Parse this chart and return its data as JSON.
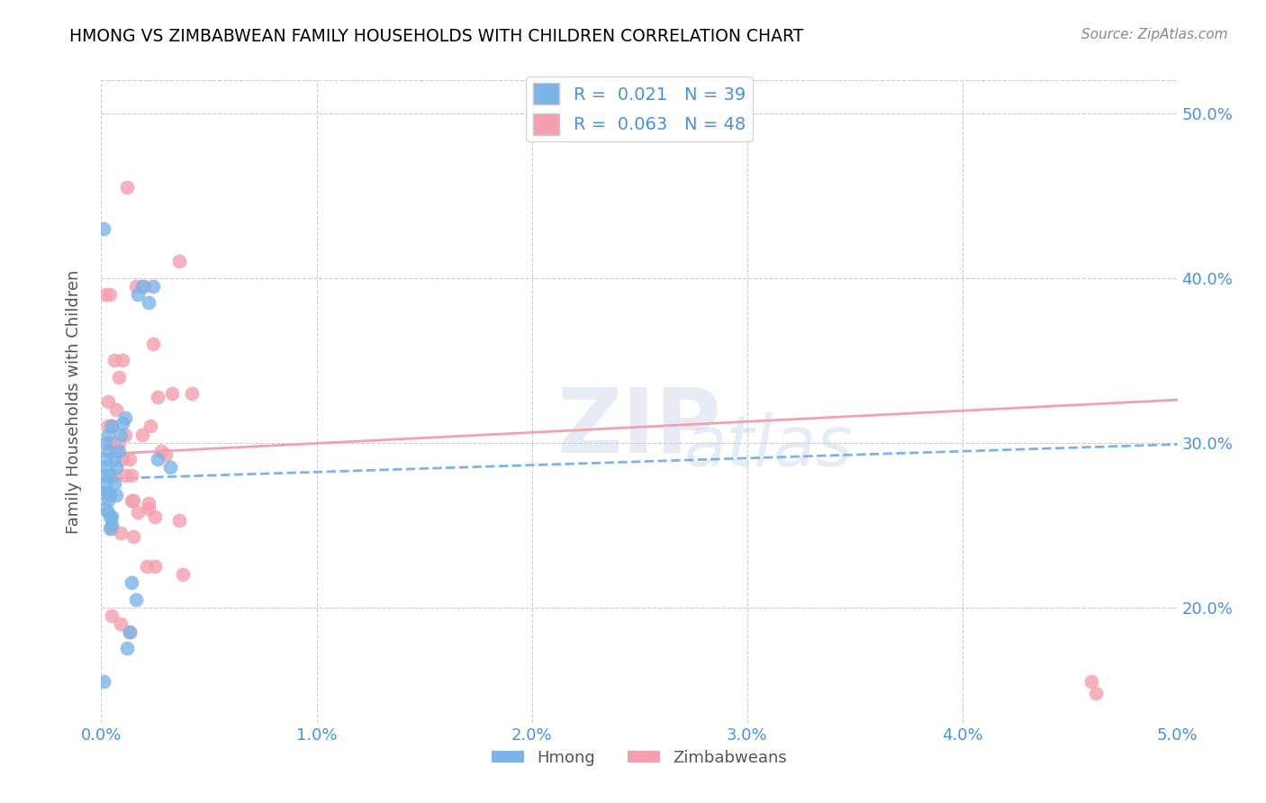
{
  "title": "HMONG VS ZIMBABWEAN FAMILY HOUSEHOLDS WITH CHILDREN CORRELATION CHART",
  "source": "Source: ZipAtlas.com",
  "ylabel": "Family Households with Children",
  "xlim": [
    0.0,
    0.05
  ],
  "ylim": [
    0.13,
    0.52
  ],
  "xtick_vals": [
    0.0,
    0.01,
    0.02,
    0.03,
    0.04,
    0.05
  ],
  "xtick_labels": [
    "0.0%",
    "1.0%",
    "2.0%",
    "3.0%",
    "4.0%",
    "5.0%"
  ],
  "ytick_vals": [
    0.2,
    0.3,
    0.4,
    0.5
  ],
  "ytick_labels": [
    "20.0%",
    "30.0%",
    "40.0%",
    "50.0%"
  ],
  "hmong_color": "#7cb4e8",
  "zimbabwean_color": "#f4a0b0",
  "hmong_R": 0.021,
  "hmong_N": 39,
  "zimbabwean_R": 0.063,
  "zimbabwean_N": 48,
  "legend_label_hmong": "Hmong",
  "legend_label_zimbabwean": "Zimbabweans",
  "hmong_x": [
    0.0001,
    0.0001,
    0.0001,
    0.0002,
    0.0002,
    0.0002,
    0.0002,
    0.0002,
    0.0003,
    0.0003,
    0.0003,
    0.0003,
    0.0003,
    0.0004,
    0.0004,
    0.0004,
    0.0004,
    0.0005,
    0.0005,
    0.0005,
    0.0006,
    0.0006,
    0.0007,
    0.0007,
    0.0008,
    0.0009,
    0.001,
    0.0011,
    0.0012,
    0.0013,
    0.0014,
    0.0016,
    0.0017,
    0.0019,
    0.0022,
    0.0024,
    0.0026,
    0.0032,
    0.0001
  ],
  "hmong_y": [
    0.155,
    0.27,
    0.28,
    0.26,
    0.275,
    0.285,
    0.29,
    0.3,
    0.258,
    0.265,
    0.27,
    0.295,
    0.305,
    0.248,
    0.255,
    0.268,
    0.28,
    0.25,
    0.255,
    0.31,
    0.275,
    0.29,
    0.268,
    0.285,
    0.295,
    0.305,
    0.312,
    0.315,
    0.175,
    0.185,
    0.215,
    0.205,
    0.39,
    0.395,
    0.385,
    0.395,
    0.29,
    0.285,
    0.43
  ],
  "zimbabwean_x": [
    0.0002,
    0.0003,
    0.0003,
    0.0004,
    0.0004,
    0.0005,
    0.0005,
    0.0006,
    0.0006,
    0.0007,
    0.0007,
    0.0008,
    0.0008,
    0.0009,
    0.001,
    0.001,
    0.0011,
    0.0011,
    0.0012,
    0.0013,
    0.0014,
    0.0014,
    0.0015,
    0.0015,
    0.0016,
    0.0017,
    0.0019,
    0.002,
    0.0021,
    0.0022,
    0.0023,
    0.0024,
    0.0025,
    0.0026,
    0.0028,
    0.003,
    0.0033,
    0.0036,
    0.0038,
    0.0042,
    0.0005,
    0.0009,
    0.0013,
    0.0022,
    0.0025,
    0.0036,
    0.046,
    0.0462
  ],
  "zimbabwean_y": [
    0.39,
    0.31,
    0.325,
    0.3,
    0.39,
    0.248,
    0.31,
    0.28,
    0.35,
    0.295,
    0.32,
    0.3,
    0.34,
    0.245,
    0.29,
    0.35,
    0.28,
    0.305,
    0.455,
    0.29,
    0.265,
    0.28,
    0.243,
    0.265,
    0.395,
    0.258,
    0.305,
    0.395,
    0.225,
    0.263,
    0.31,
    0.36,
    0.225,
    0.328,
    0.295,
    0.293,
    0.33,
    0.41,
    0.22,
    0.33,
    0.195,
    0.19,
    0.185,
    0.26,
    0.255,
    0.253,
    0.155,
    0.148
  ],
  "hmong_trend_x": [
    0.0,
    0.05
  ],
  "hmong_trend_y": [
    0.278,
    0.299
  ],
  "zimb_trend_x": [
    0.0,
    0.05
  ],
  "zimb_trend_y": [
    0.293,
    0.326
  ],
  "background_color": "#ffffff",
  "grid_color": "#cccccc",
  "title_color": "#000000",
  "tick_color": "#4a90d9",
  "label_color": "#555555"
}
